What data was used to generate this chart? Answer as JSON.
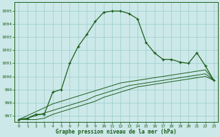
{
  "title": "Graphe pression niveau de la mer (hPa)",
  "bg_color": "#cce8e8",
  "grid_color": "#99cccc",
  "line_color": "#1a5c1a",
  "xlim": [
    -0.5,
    23.5
  ],
  "ylim": [
    996.5,
    1005.7
  ],
  "yticks": [
    997,
    998,
    999,
    1000,
    1001,
    1002,
    1003,
    1004,
    1005
  ],
  "xticks": [
    0,
    1,
    2,
    3,
    4,
    5,
    6,
    7,
    8,
    9,
    10,
    11,
    12,
    13,
    14,
    15,
    16,
    17,
    18,
    19,
    20,
    21,
    22,
    23
  ],
  "series_main": {
    "x": [
      0,
      1,
      2,
      3,
      4,
      5,
      6,
      7,
      8,
      9,
      10,
      11,
      12,
      13,
      14,
      15,
      16,
      17,
      18,
      19,
      20,
      21,
      22,
      23
    ],
    "y": [
      996.7,
      996.8,
      997.1,
      997.1,
      998.8,
      999.0,
      1001.0,
      1002.3,
      1003.2,
      1004.2,
      1004.9,
      1005.0,
      1005.0,
      1004.8,
      1004.4,
      1002.6,
      1001.8,
      1001.3,
      1001.3,
      1001.1,
      1001.0,
      1001.8,
      1000.8,
      999.7
    ]
  },
  "series_line1": {
    "x": [
      0,
      1,
      2,
      3,
      4,
      5,
      6,
      7,
      8,
      9,
      10,
      11,
      12,
      13,
      14,
      15,
      16,
      17,
      18,
      19,
      20,
      21,
      22,
      23
    ],
    "y": [
      996.7,
      996.7,
      996.7,
      996.8,
      997.1,
      997.3,
      997.5,
      997.7,
      997.9,
      998.1,
      998.4,
      998.6,
      998.8,
      999.0,
      999.2,
      999.3,
      999.4,
      999.5,
      999.6,
      999.7,
      999.8,
      999.9,
      1000.0,
      999.7
    ]
  },
  "series_line2": {
    "x": [
      0,
      1,
      2,
      3,
      4,
      5,
      6,
      7,
      8,
      9,
      10,
      11,
      12,
      13,
      14,
      15,
      16,
      17,
      18,
      19,
      20,
      21,
      22,
      23
    ],
    "y": [
      996.7,
      996.8,
      997.0,
      997.2,
      997.4,
      997.6,
      997.8,
      998.0,
      998.2,
      998.5,
      998.7,
      998.9,
      999.1,
      999.3,
      999.4,
      999.5,
      999.6,
      999.7,
      999.8,
      999.9,
      1000.0,
      1000.1,
      1000.2,
      999.7
    ]
  },
  "series_line3": {
    "x": [
      0,
      1,
      2,
      3,
      4,
      5,
      6,
      7,
      8,
      9,
      10,
      11,
      12,
      13,
      14,
      15,
      16,
      17,
      18,
      19,
      20,
      21,
      22,
      23
    ],
    "y": [
      996.7,
      997.0,
      997.3,
      997.6,
      997.9,
      998.1,
      998.3,
      998.5,
      998.7,
      998.9,
      999.1,
      999.3,
      999.5,
      999.6,
      999.7,
      999.8,
      999.9,
      1000.0,
      1000.1,
      1000.2,
      1000.3,
      1000.4,
      1000.5,
      999.7
    ]
  }
}
